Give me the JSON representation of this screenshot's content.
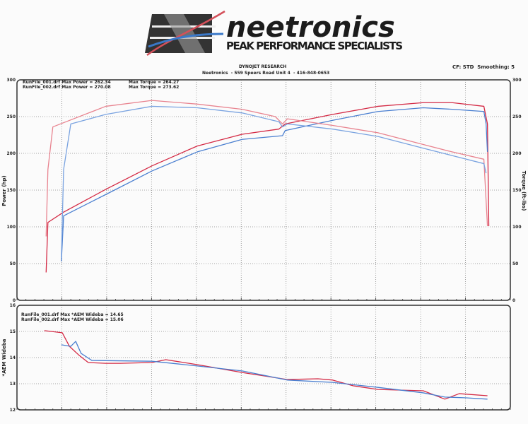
{
  "logo": {
    "brand": "neetronics",
    "tagline": "PEAK PERFORMANCE SPECIALISTS"
  },
  "header": {
    "title": "DYNOJET RESEARCH",
    "subtitle": "Neetronics  - 559 Speers Road Unit 4  - 416-848-0653",
    "settings": "CF: STD  Smoothing: 5"
  },
  "colors": {
    "run_001": "#4a7fd0",
    "run_002": "#d42a45",
    "run_002_torque": "#e8838f",
    "run_001_torque": "#7aa3e0"
  },
  "chart_data": [
    {
      "type": "line",
      "ylabel": "Power (hp)",
      "y2label": "Torque (ft-lbs)",
      "ylim": [
        0,
        300
      ],
      "y2lim": [
        0,
        300
      ],
      "xlim": [
        0,
        11
      ],
      "yticks": [
        "0",
        "50",
        "100",
        "150",
        "200",
        "250",
        "300"
      ],
      "y2ticks": [
        "0",
        "50",
        "100",
        "150",
        "200",
        "250",
        "300"
      ],
      "grid": true,
      "legend": [
        "RunFile_001.drf Max Power = 262.34",
        "Max Torque = 264.27",
        "RunFile_002.drf Max Power = 270.08",
        "Max Torque = 273.62"
      ],
      "series": [
        {
          "name": "RunFile_002.drf Power",
          "color": "#d42a45",
          "x": [
            0.65,
            0.69,
            1.04,
            1.98,
            3.01,
            4.02,
            5.02,
            5.84,
            5.98,
            7.04,
            8.05,
            9.06,
            9.7,
            10.41,
            10.49,
            10.52
          ],
          "y": [
            38,
            106,
            120,
            151,
            183,
            210,
            226,
            233,
            240,
            253,
            264,
            269,
            269,
            264,
            240,
            101
          ]
        },
        {
          "name": "RunFile_001.drf Power",
          "color": "#4a7fd0",
          "x": [
            0.99,
            1.04,
            1.98,
            3.01,
            4.02,
            5.02,
            5.92,
            5.98,
            7.04,
            8.05,
            9.06,
            9.7,
            10.41,
            10.46,
            10.49
          ],
          "y": [
            53,
            115,
            144,
            176,
            202,
            219,
            224,
            231,
            245,
            257,
            262,
            260,
            257,
            240,
            202
          ]
        },
        {
          "name": "RunFile_002.drf Torque",
          "color": "#e8838f",
          "x": [
            0.65,
            0.69,
            0.8,
            1.98,
            3.01,
            4.02,
            5.02,
            5.76,
            5.92,
            6.03,
            7.04,
            8.05,
            9.06,
            9.7,
            10.41,
            10.49
          ],
          "y": [
            87,
            178,
            236,
            264,
            272,
            267,
            260,
            250,
            240,
            247,
            238,
            228,
            212,
            202,
            192,
            101
          ]
        },
        {
          "name": "RunFile_001.drf Torque",
          "color": "#7aa3e0",
          "x": [
            0.99,
            1.04,
            1.2,
            1.98,
            3.01,
            4.02,
            5.02,
            5.84,
            5.92,
            6.03,
            7.04,
            8.05,
            9.06,
            9.7,
            10.41,
            10.46
          ],
          "y": [
            58,
            178,
            240,
            253,
            264,
            262,
            255,
            243,
            236,
            240,
            233,
            223,
            207,
            197,
            186,
            173
          ]
        }
      ]
    },
    {
      "type": "line",
      "ylabel": "*AEM Wideba",
      "ylim": [
        12,
        16
      ],
      "xlim": [
        0,
        11
      ],
      "yticks": [
        "12",
        "13",
        "14",
        "15",
        "16"
      ],
      "grid": true,
      "legend": [
        "RunFile_001.drf Max *AEM Wideba = 14.65",
        "RunFile_002.drf Max *AEM Wideba = 15.06"
      ],
      "series": [
        {
          "name": "RunFile_002.drf *AEM Wideba",
          "color": "#d42a45",
          "x": [
            0.61,
            1.01,
            1.17,
            1.39,
            1.59,
            1.98,
            2.3,
            3.01,
            3.32,
            4.02,
            5.02,
            6.03,
            6.71,
            7.04,
            7.5,
            8.05,
            9.06,
            9.54,
            9.86,
            10.49
          ],
          "y": [
            15.03,
            14.95,
            14.43,
            14.08,
            13.81,
            13.78,
            13.78,
            13.81,
            13.92,
            13.73,
            13.43,
            13.16,
            13.19,
            13.14,
            12.92,
            12.78,
            12.73,
            12.41,
            12.62,
            12.54
          ]
        },
        {
          "name": "RunFile_001.drf *AEM Wideba",
          "color": "#4a7fd0",
          "x": [
            0.99,
            1.2,
            1.31,
            1.43,
            1.67,
            3.01,
            4.02,
            5.02,
            6.03,
            7.04,
            8.05,
            9.06,
            9.54,
            10.02,
            10.49
          ],
          "y": [
            14.49,
            14.43,
            14.62,
            14.16,
            13.89,
            13.86,
            13.68,
            13.49,
            13.14,
            13.05,
            12.86,
            12.65,
            12.49,
            12.46,
            12.41
          ]
        }
      ]
    }
  ]
}
